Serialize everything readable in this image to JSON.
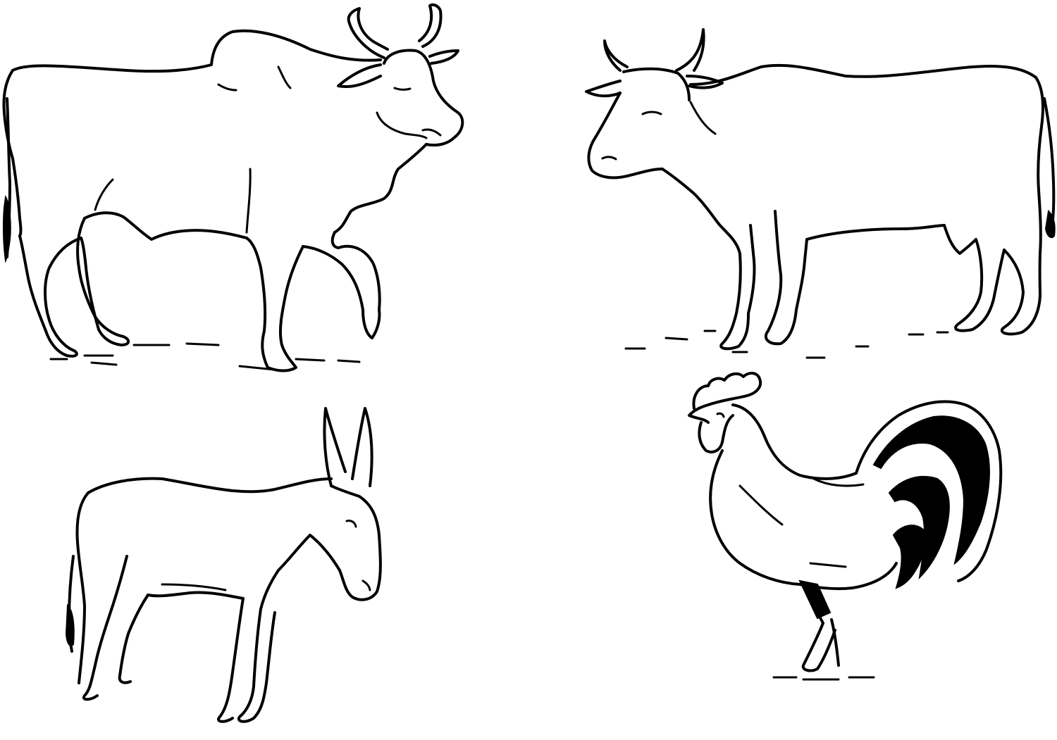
{
  "page": {
    "background": "#ffffff",
    "ink": "#000000"
  },
  "figures": [
    {
      "id": "bull",
      "kind": "humped bull (zebu)",
      "position": "top-left"
    },
    {
      "id": "cow",
      "kind": "cow",
      "position": "top-right"
    },
    {
      "id": "donkey",
      "kind": "donkey",
      "position": "bottom-left"
    },
    {
      "id": "rooster",
      "kind": "rooster",
      "position": "bottom-right"
    }
  ]
}
